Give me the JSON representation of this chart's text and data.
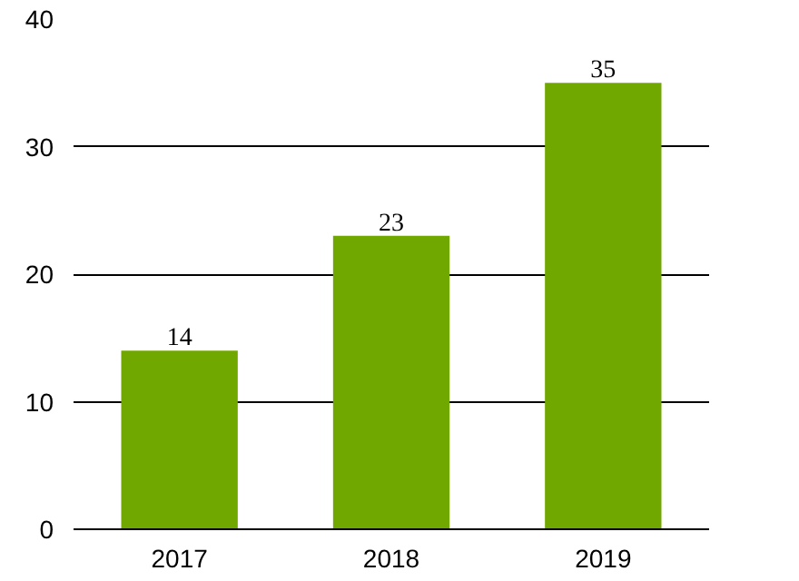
{
  "chart_data": {
    "type": "bar",
    "categories": [
      "2017",
      "2018",
      "2019"
    ],
    "values": [
      14,
      23,
      35
    ],
    "color": "#70a800",
    "ylim": [
      0,
      40
    ],
    "yticks": [
      0,
      10,
      20,
      30,
      40
    ],
    "grid": "y",
    "data_labels": true
  }
}
